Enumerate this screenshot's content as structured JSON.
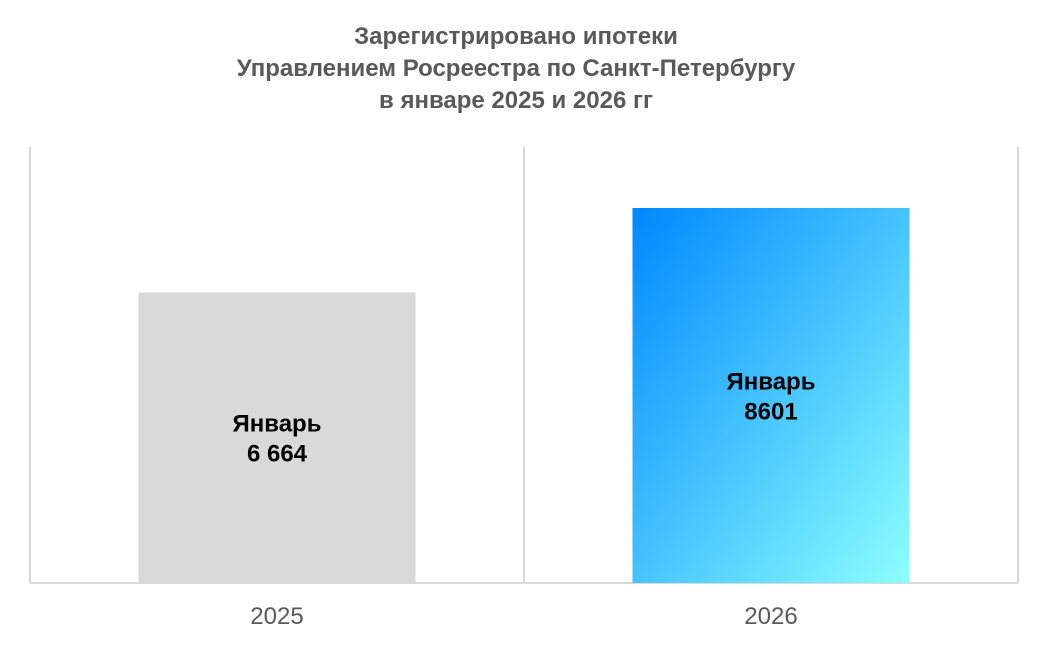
{
  "chart_data": {
    "type": "bar",
    "title": [
      "Зарегистрировано ипотеки",
      "Управлением Росреестра по Санкт-Петербургу",
      "в январе 2025 и 2026 гг"
    ],
    "xlabel": "",
    "ylabel": "",
    "categories": [
      "2025",
      "2026"
    ],
    "values": [
      6664,
      8601
    ],
    "data_labels": [
      {
        "line1": "Январь",
        "line2": "6 664"
      },
      {
        "line1": "Январь",
        "line2": "8601"
      }
    ],
    "ylim": [
      0,
      10000
    ],
    "y_axis_visible": false,
    "grid": "vertical category separators",
    "legend": "none",
    "colors": {
      "bar_2025": "#d9d9d9",
      "bar_2026_gradient_start": "#0088ff",
      "bar_2026_gradient_end": "#8cffff",
      "title": "#595959",
      "axis": "#d9d9d9"
    }
  }
}
